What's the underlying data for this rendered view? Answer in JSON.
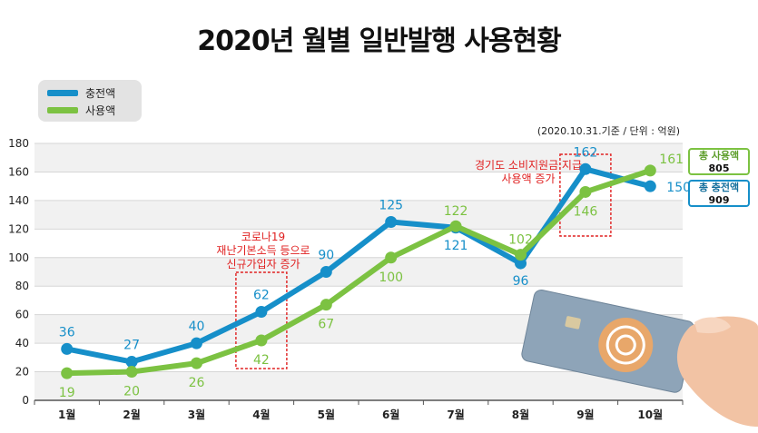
{
  "title": "2020년 월별 일반발행 사용현황",
  "unit_note": "(2020.10.31.기준 / 단위 : 억원)",
  "colors": {
    "charge": "#168fc9",
    "use": "#7cc242",
    "annotation": "#e02020"
  },
  "legend": [
    {
      "label": "충전액",
      "color": "#168fc9"
    },
    {
      "label": "사용액",
      "color": "#7cc242"
    }
  ],
  "totals": {
    "use": {
      "label": "총 사용액",
      "value": "805"
    },
    "charge": {
      "label": "총 충전액",
      "value": "909"
    }
  },
  "annotations": [
    {
      "lines": [
        "코로나19",
        "재난기본소득 등으로",
        "신규가입자 증가"
      ],
      "month_index": 3
    },
    {
      "lines": [
        "경기도 소비지원금 지급",
        "사용액 증가"
      ],
      "month_index": 8
    }
  ],
  "chart_data": {
    "type": "line",
    "title": "2020년 월별 일반발행 사용현황",
    "categories": [
      "1월",
      "2월",
      "3월",
      "4월",
      "5월",
      "6월",
      "7월",
      "8월",
      "9월",
      "10월"
    ],
    "series": [
      {
        "name": "충전액",
        "values": [
          36,
          27,
          40,
          62,
          90,
          125,
          121,
          96,
          162,
          150
        ]
      },
      {
        "name": "사용액",
        "values": [
          19,
          20,
          26,
          42,
          67,
          100,
          122,
          102,
          146,
          161
        ]
      }
    ],
    "ylim": [
      0,
      180
    ],
    "yticks": [
      0,
      20,
      40,
      60,
      80,
      100,
      120,
      140,
      160,
      180
    ],
    "grid": true,
    "legend_position": "top-left"
  }
}
